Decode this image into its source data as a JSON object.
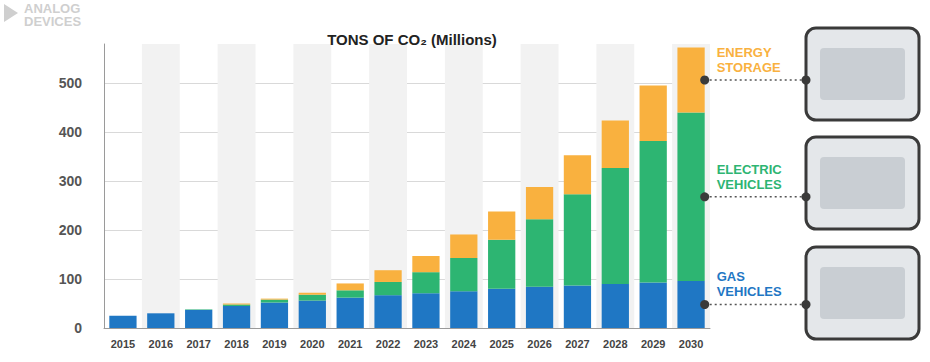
{
  "chart_data": {
    "type": "bar",
    "title": "TONS OF CO₂ (Millions)",
    "annotations": [
      "ANALOG DEVICES"
    ],
    "categories": [
      "2015",
      "2016",
      "2017",
      "2018",
      "2019",
      "2020",
      "2021",
      "2022",
      "2023",
      "2024",
      "2025",
      "2026",
      "2027",
      "2028",
      "2029",
      "2030"
    ],
    "series": [
      {
        "name": "GAS VEHICLES",
        "color": "#1f77c4",
        "values": [
          25,
          30,
          37,
          45,
          52,
          56,
          62,
          67,
          71,
          75,
          80,
          84,
          87,
          90,
          93,
          96
        ]
      },
      {
        "name": "ELECTRIC VEHICLES",
        "color": "#2db572",
        "values": [
          0,
          0,
          1,
          3,
          6,
          12,
          15,
          27,
          43,
          68,
          100,
          138,
          186,
          237,
          289,
          344
        ]
      },
      {
        "name": "ENERGY STORAGE",
        "color": "#f9b13f",
        "values": [
          0,
          0,
          0,
          2,
          2,
          4,
          14,
          24,
          33,
          48,
          58,
          66,
          80,
          97,
          113,
          133
        ]
      }
    ],
    "ylim": [
      0,
      580
    ],
    "yticks": [
      0,
      100,
      200,
      300,
      400,
      500
    ],
    "grid": true,
    "stacked": true
  }
}
